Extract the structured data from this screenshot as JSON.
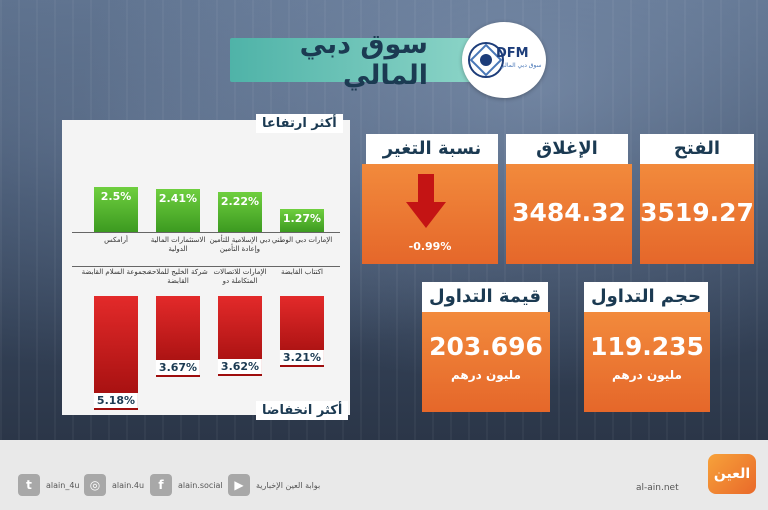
{
  "header": {
    "title": "سوق دبي المالي",
    "logo_text": "DFM",
    "logo_sub": "سوق دبي المالي"
  },
  "gainers": {
    "label": "أكثر ارتفاعا",
    "items": [
      {
        "name": "الإمارات دبي الوطني",
        "value": "1.27%"
      },
      {
        "name": "دبي الإسلامية للتأمين وإعادة التأمين",
        "value": "2.22%"
      },
      {
        "name": "الاستثمارات المالية الدولية",
        "value": "2.41%"
      },
      {
        "name": "أرامكس",
        "value": "2.5%"
      }
    ]
  },
  "losers": {
    "label": "أكثر انخفاضا",
    "items": [
      {
        "name": "اكتتاب القابضة",
        "value": "3.21%"
      },
      {
        "name": "الإمارات للاتصالات المتكاملة دو",
        "value": "3.62%"
      },
      {
        "name": "شركة الخليج للملاحة القابضة",
        "value": "3.67%"
      },
      {
        "name": "مجموعة السلام القابضة",
        "value": "5.18%"
      }
    ]
  },
  "chart_data": {
    "type": "bar",
    "gainers": {
      "categories": [
        "الإمارات دبي الوطني",
        "دبي الإسلامية للتأمين وإعادة التأمين",
        "الاستثمارات المالية الدولية",
        "أرامكس"
      ],
      "values": [
        1.27,
        2.22,
        2.41,
        2.5
      ]
    },
    "losers": {
      "categories": [
        "اكتتاب القابضة",
        "الإمارات للاتصالات المتكاملة دو",
        "شركة الخليج للملاحة القابضة",
        "مجموعة السلام القابضة"
      ],
      "values": [
        3.21,
        3.62,
        3.67,
        5.18
      ]
    }
  },
  "stats": {
    "open": {
      "label": "الفتح",
      "value": "3519.27"
    },
    "close": {
      "label": "الإغلاق",
      "value": "3484.32"
    },
    "change": {
      "label": "نسبة التغير",
      "value": "-0.99%"
    },
    "volume": {
      "label": "حجم التداول",
      "value": "119.235",
      "unit": "مليون درهم"
    },
    "turnover": {
      "label": "قيمة التداول",
      "value": "203.696",
      "unit": "مليون درهم"
    }
  },
  "footer": {
    "social": [
      {
        "icon": "twitter-icon",
        "glyph": "t",
        "label": "alain_4u"
      },
      {
        "icon": "instagram-icon",
        "glyph": "◎",
        "label": "alain.4u"
      },
      {
        "icon": "facebook-icon",
        "glyph": "f",
        "label": "alain.social"
      },
      {
        "icon": "youtube-icon",
        "glyph": "▶",
        "label": "بوابة العين الإخبارية"
      }
    ],
    "site": "al-ain.net",
    "brand": "العين"
  },
  "colors": {
    "accent_orange": "#e9692a",
    "up_green": "#4caf2a",
    "down_red": "#c41414",
    "banner_teal": "#4fb3a8"
  }
}
